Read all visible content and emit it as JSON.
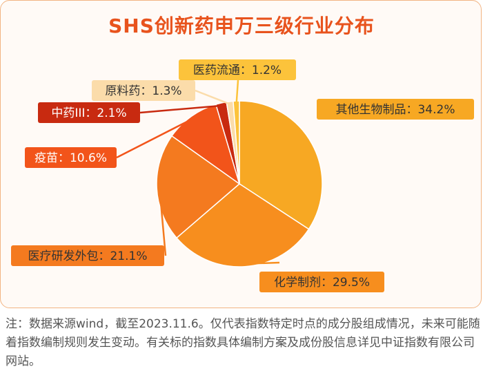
{
  "chart_data": {
    "type": "pie",
    "title": "SHS创新药申万三级行业分布",
    "slices": [
      {
        "label": "其他生物制品：34.2%",
        "value": 34.2,
        "color": "#f7a823",
        "text_color": "#333333"
      },
      {
        "label": "化学制剂：29.5%",
        "value": 29.5,
        "color": "#f78e1e",
        "text_color": "#333333"
      },
      {
        "label": "医疗研发外包：21.1%",
        "value": 21.1,
        "color": "#f47a1f",
        "text_color": "#333333"
      },
      {
        "label": "疫苗：10.6%",
        "value": 10.6,
        "color": "#f2541a",
        "text_color": "#ffffff"
      },
      {
        "label": "中药III：2.1%",
        "value": 2.1,
        "color": "#c82a10",
        "text_color": "#ffffff"
      },
      {
        "label": "原料药：1.3%",
        "value": 1.3,
        "color": "#fbdcaa",
        "text_color": "#333333"
      },
      {
        "label": "医药流通：1.2%",
        "value": 1.2,
        "color": "#fcc33b",
        "text_color": "#333333"
      }
    ]
  },
  "footnote": "注：数据来源wind，截至2023.11.6。仅代表指数特定时点的成分股组成情况，未来可能随着指数编制规则发生变动。有关标的指数具体编制方案及成份股信息详见中证指数有限公司网站。"
}
